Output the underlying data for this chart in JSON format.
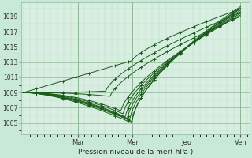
{
  "xlabel": "Pression niveau de la mer( hPa )",
  "background_color": "#c8e8d8",
  "plot_bg_color": "#d8eee0",
  "grid_color_minor": "#b8d8c8",
  "grid_color_major": "#90b898",
  "line_color": "#1a5c1a",
  "ylim": [
    1003.5,
    1020.8
  ],
  "yticks": [
    1005,
    1007,
    1009,
    1011,
    1013,
    1015,
    1017,
    1019
  ],
  "day_labels": [
    "Mar",
    "Mer",
    "Jeu",
    "Ven"
  ],
  "day_positions": [
    0.25,
    0.5,
    0.75,
    1.0
  ],
  "xlim": [
    -0.01,
    1.04
  ]
}
